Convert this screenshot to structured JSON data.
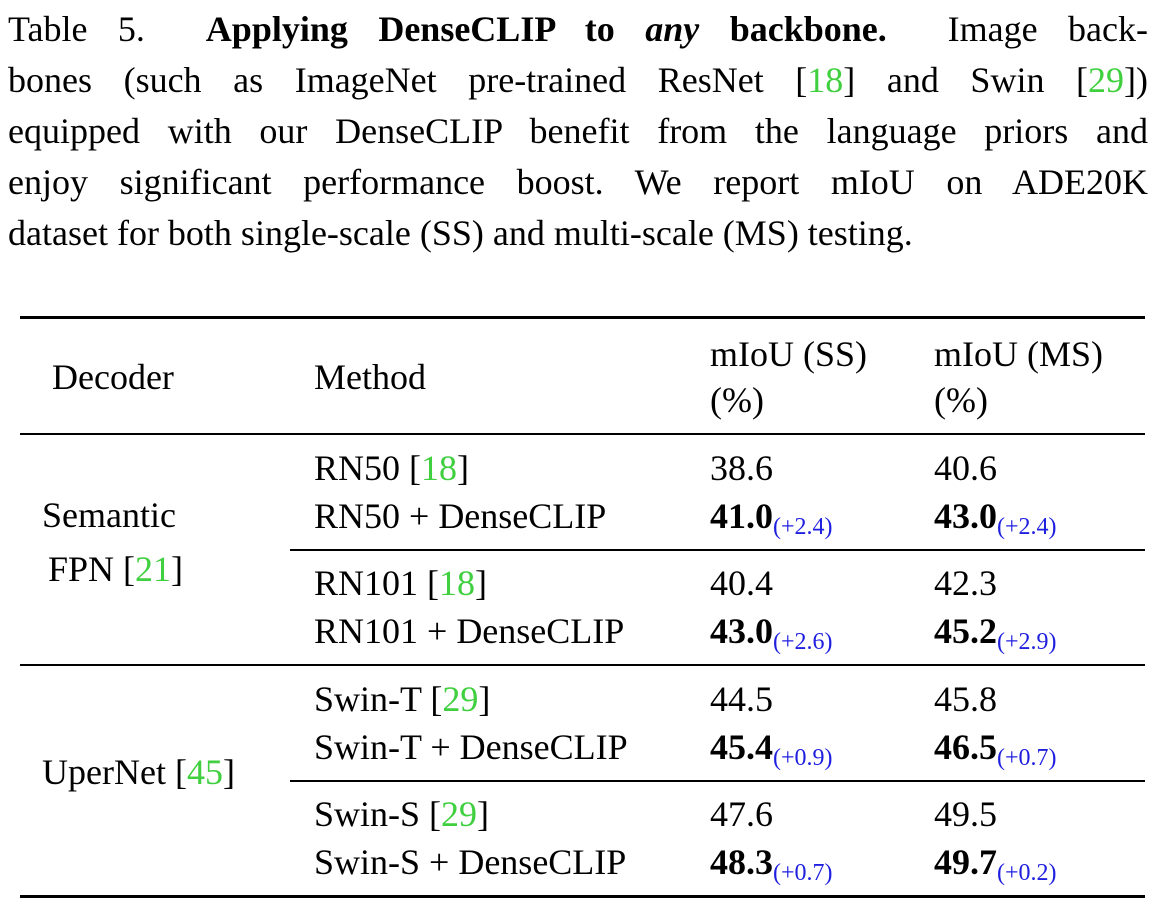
{
  "caption": {
    "label": "Table 5.",
    "title": "Applying DenseCLIP to",
    "title_italic": "any",
    "title_end": "backbone.",
    "line1_rest": "Image back-",
    "line2a": "bones (such as ImageNet pre-trained ResNet [",
    "line2_cite1": "18",
    "line2b": "] and Swin [",
    "line2_cite2": "29",
    "line2c": "])",
    "line3": "equipped with our DenseCLIP benefit from the language priors and",
    "line4": "enjoy significant performance boost. We report mIoU on ADE20K",
    "line5": "dataset for both single-scale (SS) and multi-scale (MS) testing."
  },
  "table": {
    "headers": {
      "decoder": "Decoder",
      "method": "Method",
      "ss_line1": "mIoU (SS)",
      "ss_line2": "(%)",
      "ms_line1": "mIoU (MS)",
      "ms_line2": "(%)"
    },
    "groups": [
      {
        "decoder_line1": "Semantic",
        "decoder_line2": "FPN [",
        "decoder_cite": "21",
        "decoder_end": "]",
        "pairs": [
          {
            "base_method": "RN50 [",
            "base_cite": "18",
            "base_end": "]",
            "base_ss": "38.6",
            "base_ms": "40.6",
            "dense_method": "RN50 + DenseCLIP",
            "dense_ss": "41.0",
            "dense_ss_delta": "(+2.4)",
            "dense_ms": "43.0",
            "dense_ms_delta": "(+2.4)"
          },
          {
            "base_method": "RN101 [",
            "base_cite": "18",
            "base_end": "]",
            "base_ss": "40.4",
            "base_ms": "42.3",
            "dense_method": "RN101 + DenseCLIP",
            "dense_ss": "43.0",
            "dense_ss_delta": "(+2.6)",
            "dense_ms": "45.2",
            "dense_ms_delta": "(+2.9)"
          }
        ]
      },
      {
        "decoder_line1": "UperNet [",
        "decoder_cite": "45",
        "decoder_end": "]",
        "pairs": [
          {
            "base_method": "Swin-T [",
            "base_cite": "29",
            "base_end": "]",
            "base_ss": "44.5",
            "base_ms": "45.8",
            "dense_method": "Swin-T + DenseCLIP",
            "dense_ss": "45.4",
            "dense_ss_delta": "(+0.9)",
            "dense_ms": "46.5",
            "dense_ms_delta": "(+0.7)"
          },
          {
            "base_method": "Swin-S [",
            "base_cite": "29",
            "base_end": "]",
            "base_ss": "47.6",
            "base_ms": "49.5",
            "dense_method": "Swin-S + DenseCLIP",
            "dense_ss": "48.3",
            "dense_ss_delta": "(+0.7)",
            "dense_ms": "49.7",
            "dense_ms_delta": "(+0.2)"
          }
        ]
      }
    ]
  },
  "colors": {
    "citation": "#3fcf3f",
    "delta": "#1f1fe0"
  }
}
